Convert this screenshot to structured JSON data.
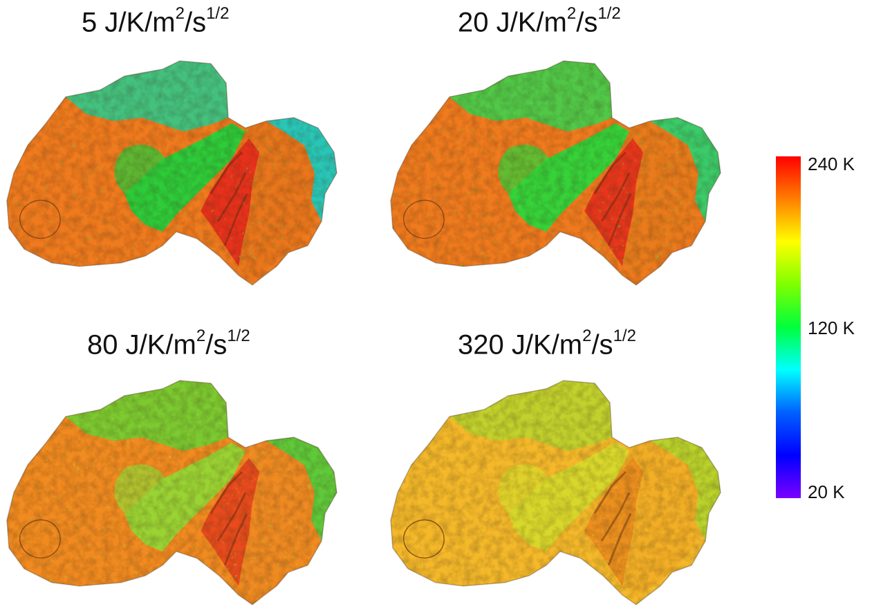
{
  "panels": [
    {
      "title_main": "5 J/K/m",
      "title_sup1": "2",
      "title_mid": "/s",
      "title_sup2": "1/2",
      "palette": {
        "head": "#f07a1e",
        "neck": "#2ecb3a",
        "headRim": "#31c98a",
        "lobe": "#e9761c",
        "lobeRim": "#29c6b8",
        "ridge": "#e8261c",
        "speck": "#4fd24a"
      }
    },
    {
      "title_main": "20 J/K/m",
      "title_sup1": "2",
      "title_mid": "/s",
      "title_sup2": "1/2",
      "palette": {
        "head": "#f07a1e",
        "neck": "#36d23a",
        "headRim": "#3fd04c",
        "lobe": "#ea7b1c",
        "lobeRim": "#3bcb6a",
        "ridge": "#e82a1c",
        "speck": "#5ad545"
      }
    },
    {
      "title_main": "80 J/K/m",
      "title_sup1": "2",
      "title_mid": "/s",
      "title_sup2": "1/2",
      "palette": {
        "head": "#f18a20",
        "neck": "#9ad334",
        "headRim": "#6fcf33",
        "lobe": "#ef8a22",
        "lobeRim": "#5fc93a",
        "ridge": "#e8401c",
        "speck": "#a8d83a"
      }
    },
    {
      "title_main": "320 J/K/m",
      "title_sup1": "2",
      "title_mid": "/s",
      "title_sup2": "1/2",
      "palette": {
        "head": "#f4b82a",
        "neck": "#d8d82c",
        "headRim": "#bcd42e",
        "lobe": "#f2ae26",
        "lobeRim": "#b9d22c",
        "ridge": "#ea8a1e",
        "speck": "#e4d93a"
      }
    }
  ],
  "colorbar": {
    "labels": {
      "max": "240 K",
      "mid": "120 K",
      "min": "20 K"
    },
    "stops": [
      "#ff0000",
      "#ff7f00",
      "#ffff00",
      "#7fff00",
      "#00ff3c",
      "#00ffff",
      "#0060ff",
      "#0000ff",
      "#7a00ff"
    ]
  }
}
